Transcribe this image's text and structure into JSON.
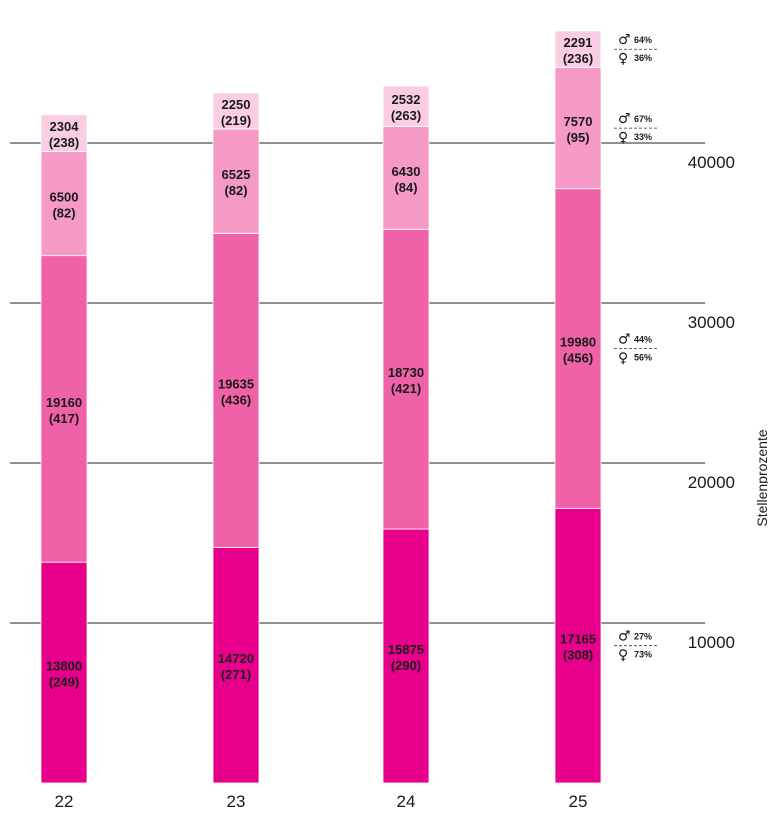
{
  "chart_data": {
    "type": "bar",
    "stacked": true,
    "categories": [
      "22",
      "23",
      "24",
      "25"
    ],
    "ylabel": "Stellenprozente",
    "ylim": [
      0,
      49000
    ],
    "yticks": [
      10000,
      20000,
      30000,
      40000
    ],
    "grid": true,
    "colors": [
      "#e8008c",
      "#f062a8",
      "#f59ac5",
      "#fbcde2"
    ],
    "series": [
      {
        "values": [
          13800,
          14720,
          15875,
          17165
        ],
        "labels": [
          "13800\n(249)",
          "14720\n(271)",
          "15875\n(290)",
          "17165\n(308)"
        ]
      },
      {
        "values": [
          19160,
          19635,
          18730,
          19980
        ],
        "labels": [
          "19160\n(417)",
          "19635\n(436)",
          "18730\n(421)",
          "19980\n(456)"
        ]
      },
      {
        "values": [
          6500,
          6525,
          6430,
          7570
        ],
        "labels": [
          "6500\n(82)",
          "6525\n(82)",
          "6430\n(84)",
          "7570\n(95)"
        ]
      },
      {
        "values": [
          2304,
          2250,
          2532,
          2291
        ],
        "labels": [
          "2304\n(238)",
          "2250\n(219)",
          "2532\n(263)",
          "2291\n(236)"
        ]
      }
    ],
    "gender_split": [
      {
        "male": "27%",
        "female": "73%"
      },
      {
        "male": "44%",
        "female": "56%"
      },
      {
        "male": "67%",
        "female": "33%"
      },
      {
        "male": "64%",
        "female": "36%"
      }
    ],
    "male_symbol": "♂",
    "female_symbol": "♀"
  }
}
